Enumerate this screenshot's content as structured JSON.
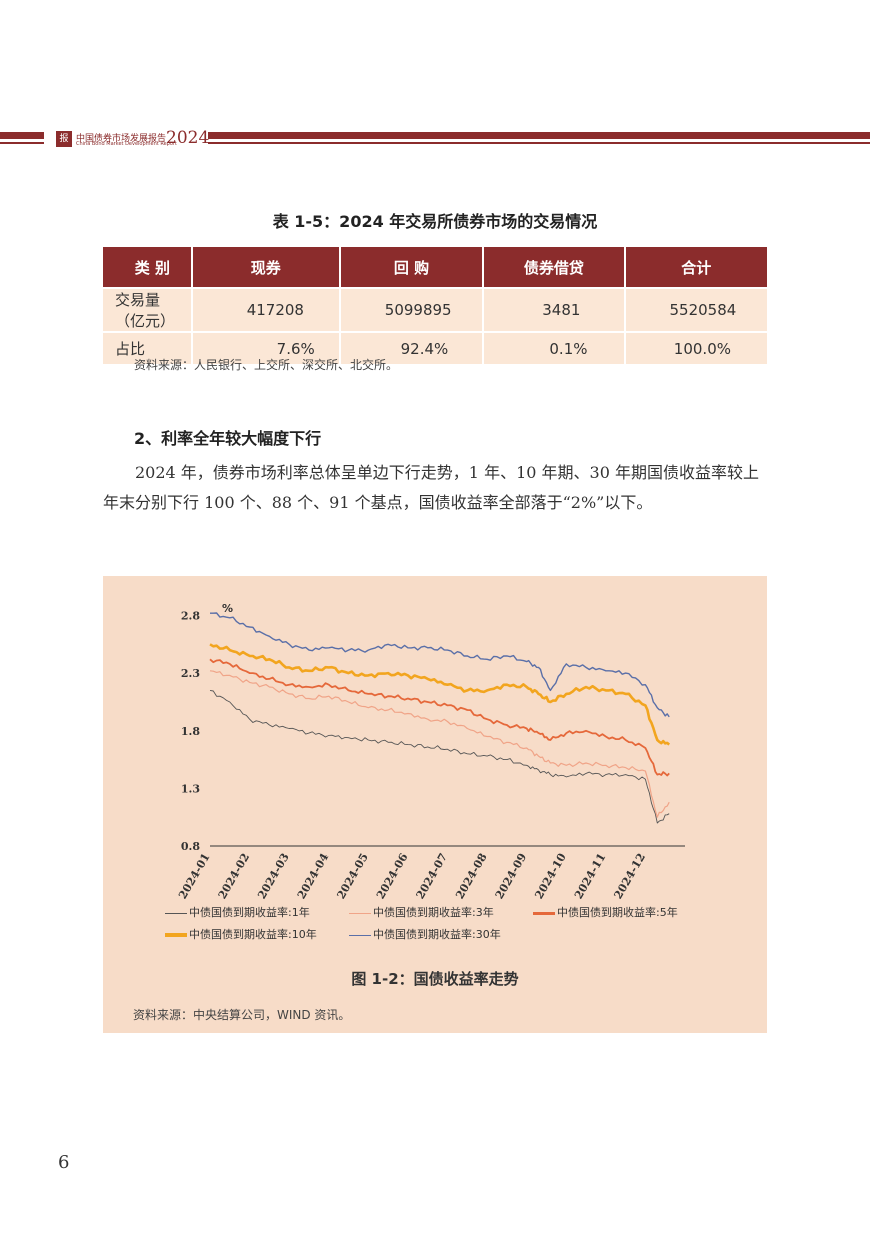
{
  "header": {
    "logo_text": "报告",
    "title_cn": "中国债券市场发展报告",
    "title_en": "China Bond Market Development Report",
    "year": "2024"
  },
  "table": {
    "title": "表 1-5：2024 年交易所债券市场的交易情况",
    "headers": [
      "类 别",
      "现券",
      "回 购",
      "债券借贷",
      "合计"
    ],
    "rows": [
      [
        "交易量（亿元）",
        "417208",
        "5099895",
        "3481",
        "5520584"
      ],
      [
        "占比",
        "7.6%",
        "92.4%",
        "0.1%",
        "100.0%"
      ]
    ],
    "source": "资料来源：人民银行、上交所、深交所、北交所。"
  },
  "section": {
    "heading": "2、利率全年较大幅度下行",
    "paragraph": "2024 年，债券市场利率总体呈单边下行走势，1 年、10 年期、30 年期国债收益率较上年末分别下行 100 个、88 个、91 个基点，国债收益率全部落于“2%”以下。"
  },
  "figure": {
    "caption": "图 1-2：国债收益率走势",
    "source": "资料来源：中央结算公司，WIND 资讯。",
    "background_color": "#f7dcc8"
  },
  "chart_data": {
    "type": "line",
    "ylabel": "%",
    "ylim": [
      0.8,
      2.9
    ],
    "yticks": [
      "0.8",
      "1.3",
      "1.8",
      "2.3",
      "2.8"
    ],
    "x_labels": [
      "2024-01",
      "2024-02",
      "2024-03",
      "2024-04",
      "2024-05",
      "2024-06",
      "2024-07",
      "2024-08",
      "2024-09",
      "2024-10",
      "2024-11",
      "2024-12"
    ],
    "x": [
      0,
      0.5,
      1,
      1.5,
      2,
      2.5,
      3,
      3.5,
      4,
      4.5,
      5,
      5.5,
      6,
      6.5,
      7,
      7.5,
      8,
      8.3,
      8.6,
      9,
      9.5,
      10,
      10.5,
      11,
      11.3,
      11.6
    ],
    "legend": [
      "中债国债到期收益率:1年",
      "中债国债到期收益率:3年",
      "中债国债到期收益率:5年",
      "中债国债到期收益率:10年",
      "中债国债到期收益率:30年"
    ],
    "series": [
      {
        "name": "中债国债到期收益率:1年",
        "color": "#555555",
        "width": 0.9,
        "values": [
          2.15,
          2.05,
          1.9,
          1.85,
          1.82,
          1.78,
          1.76,
          1.74,
          1.72,
          1.7,
          1.68,
          1.66,
          1.64,
          1.6,
          1.58,
          1.55,
          1.5,
          1.46,
          1.42,
          1.4,
          1.43,
          1.42,
          1.42,
          1.38,
          1.0,
          1.08
        ]
      },
      {
        "name": "中债国债到期收益率:3年",
        "color": "#f0a488",
        "width": 1.2,
        "values": [
          2.32,
          2.28,
          2.22,
          2.18,
          2.12,
          2.08,
          2.1,
          2.05,
          2.0,
          1.98,
          1.95,
          1.9,
          1.88,
          1.82,
          1.75,
          1.7,
          1.65,
          1.58,
          1.52,
          1.5,
          1.52,
          1.5,
          1.48,
          1.45,
          1.05,
          1.18
        ]
      },
      {
        "name": "中债国债到期收益率:5年",
        "color": "#e5683a",
        "width": 1.8,
        "values": [
          2.42,
          2.38,
          2.3,
          2.25,
          2.2,
          2.18,
          2.2,
          2.15,
          2.12,
          2.1,
          2.08,
          2.05,
          2.02,
          1.98,
          1.9,
          1.85,
          1.82,
          1.78,
          1.72,
          1.78,
          1.8,
          1.75,
          1.72,
          1.65,
          1.42,
          1.43
        ]
      },
      {
        "name": "中债国债到期收益率:10年",
        "color": "#f2a51f",
        "width": 2.6,
        "values": [
          2.55,
          2.5,
          2.45,
          2.42,
          2.35,
          2.32,
          2.35,
          2.3,
          2.28,
          2.3,
          2.28,
          2.25,
          2.2,
          2.15,
          2.15,
          2.2,
          2.18,
          2.12,
          2.05,
          2.12,
          2.18,
          2.15,
          2.12,
          2.02,
          1.72,
          1.68
        ]
      },
      {
        "name": "中债国债到期收益率:30年",
        "color": "#5a6fa8",
        "width": 1.4,
        "values": [
          2.82,
          2.78,
          2.7,
          2.62,
          2.55,
          2.5,
          2.52,
          2.5,
          2.5,
          2.55,
          2.52,
          2.52,
          2.5,
          2.45,
          2.42,
          2.45,
          2.4,
          2.35,
          2.15,
          2.38,
          2.35,
          2.32,
          2.3,
          2.2,
          2.0,
          1.92
        ]
      }
    ]
  },
  "page_number": "6"
}
